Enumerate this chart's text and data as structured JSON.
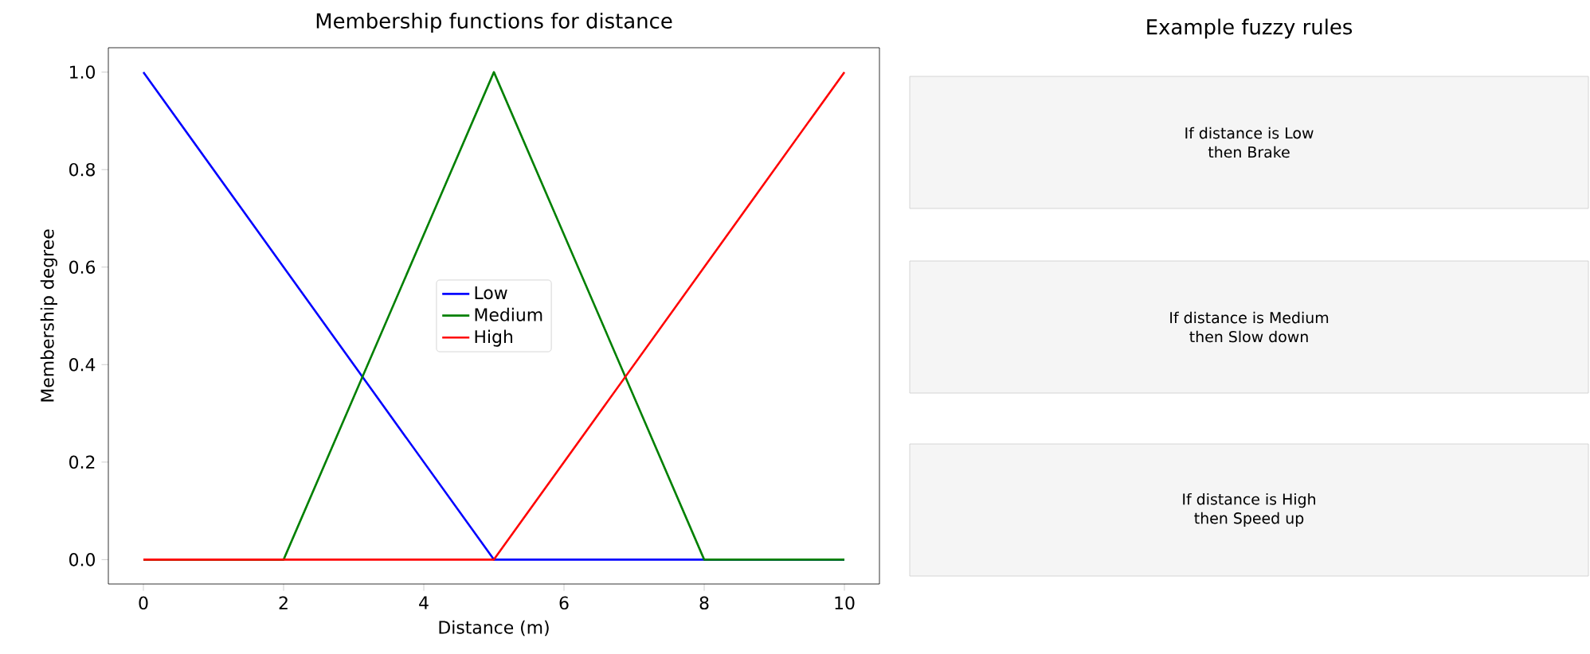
{
  "chart_data": [
    {
      "type": "line",
      "title": "Membership functions for distance",
      "xlabel": "Distance (m)",
      "ylabel": "Membership degree",
      "xlim": [
        -0.5,
        10.5
      ],
      "ylim": [
        -0.05,
        1.05
      ],
      "xticks": [
        0,
        2,
        4,
        6,
        8,
        10
      ],
      "yticks": [
        {
          "value": 0,
          "label": "0.0"
        },
        {
          "value": 0.2,
          "label": "0.2"
        },
        {
          "value": 0.4,
          "label": "0.4"
        },
        {
          "value": 0.6,
          "label": "0.6"
        },
        {
          "value": 0.8,
          "label": "0.8"
        },
        {
          "value": 1,
          "label": "1.0"
        }
      ],
      "series": [
        {
          "name": "Low",
          "color": "#0000ff",
          "x": [
            0,
            5,
            10
          ],
          "values": [
            1,
            0,
            0
          ]
        },
        {
          "name": "Medium",
          "color": "#008000",
          "x": [
            0,
            2,
            5,
            8,
            10
          ],
          "values": [
            0,
            0,
            1,
            0,
            0
          ]
        },
        {
          "name": "High",
          "color": "#ff0000",
          "x": [
            0,
            5,
            10
          ],
          "values": [
            0,
            0,
            1
          ]
        }
      ],
      "legend": "center",
      "grid": false,
      "marker": "none",
      "line_style": "solid"
    },
    {
      "type": "other",
      "title": "Example fuzzy rules",
      "annotations": [
        "If distance is Low",
        "then Brake",
        "If distance is Medium",
        "then Slow down",
        "If distance is High",
        "then Speed up"
      ]
    }
  ]
}
